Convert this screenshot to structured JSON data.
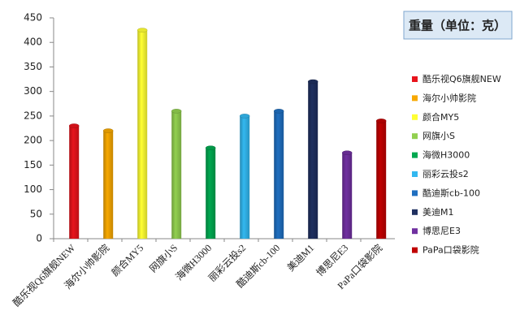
{
  "chart_data": {
    "type": "bar",
    "title": "重量（单位：克）",
    "categories": [
      "酷乐视Q6旗舰NEW",
      "海尔小帅影院",
      "颜合MY5",
      "网旗小S",
      "海微H3000",
      "丽彩云投s2",
      "酷迪斯cb-100",
      "美迪M1",
      "博思尼E3",
      "PaPa口袋影院"
    ],
    "values": [
      230,
      220,
      425,
      260,
      185,
      250,
      260,
      320,
      175,
      240
    ],
    "colors": [
      "#e8141c",
      "#f7a800",
      "#ffff33",
      "#92d050",
      "#00a850",
      "#33b8f0",
      "#1f6fc0",
      "#1f3060",
      "#7030a0",
      "#c00000"
    ],
    "ylim": [
      0,
      450
    ],
    "yticks": [
      0,
      50,
      100,
      150,
      200,
      250,
      300,
      350,
      400,
      450
    ]
  }
}
